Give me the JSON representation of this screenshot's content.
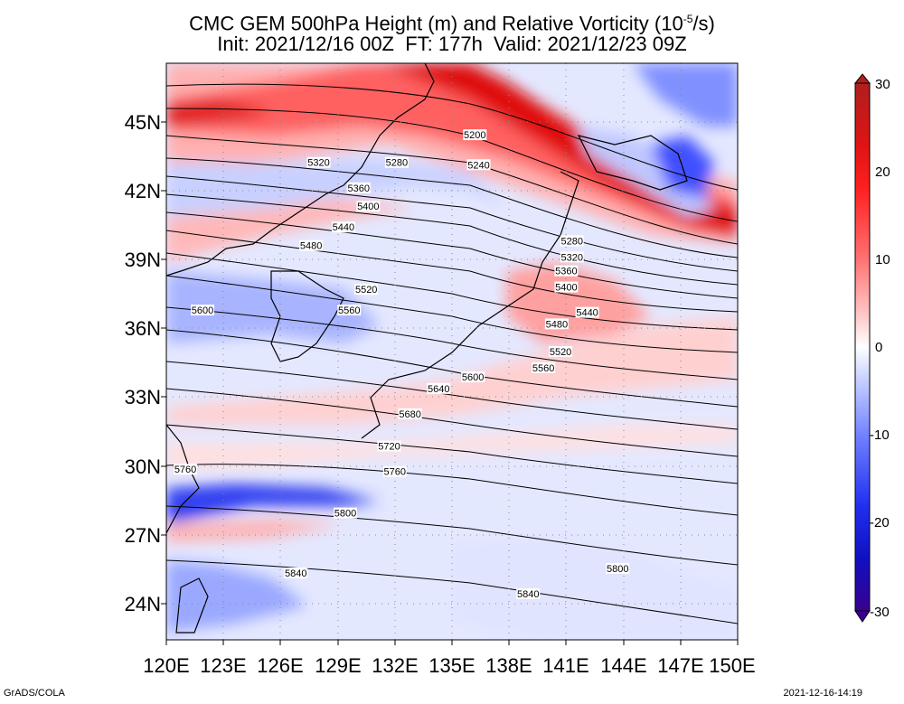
{
  "title_line1": "CMC GEM 500hPa Height (m) and Relative Vorticity (10",
  "title_line1_sup": "-5",
  "title_line1_end": "/s)",
  "title_line2": "Init: 2021/12/16 00Z  FT: 177h  Valid: 2021/12/23 09Z",
  "footer_left": "GrADS/COLA",
  "footer_right": "2021-12-16-14:19",
  "map": {
    "lon_range": [
      120,
      150
    ],
    "lat_range": [
      22.5,
      47.5
    ],
    "lat_ticks": [
      "45N",
      "42N",
      "39N",
      "36N",
      "33N",
      "30N",
      "27N",
      "24N"
    ],
    "lon_ticks": [
      "120E",
      "123E",
      "126E",
      "129E",
      "132E",
      "135E",
      "138E",
      "141E",
      "144E",
      "147E",
      "150E"
    ]
  },
  "colorbar": {
    "ticks": [
      "30",
      "20",
      "10",
      "0",
      "-10",
      "-20",
      "-30"
    ],
    "colors": [
      "#b01e1e",
      "#e01414",
      "#ff3030",
      "#ff8080",
      "#ffc8c8",
      "#ffffff",
      "#c8d2ff",
      "#8090ff",
      "#3040ff",
      "#1010d0",
      "#3000a0"
    ]
  },
  "contour_labels": [
    {
      "text": "5200",
      "lon": 136.2,
      "lat": 44.4
    },
    {
      "text": "5240",
      "lon": 136.4,
      "lat": 43.1
    },
    {
      "text": "5280",
      "lon": 132.1,
      "lat": 43.2
    },
    {
      "text": "5320",
      "lon": 128.0,
      "lat": 43.2
    },
    {
      "text": "5360",
      "lon": 130.1,
      "lat": 42.1
    },
    {
      "text": "5400",
      "lon": 130.6,
      "lat": 41.3
    },
    {
      "text": "5440",
      "lon": 129.3,
      "lat": 40.4
    },
    {
      "text": "5480",
      "lon": 127.6,
      "lat": 39.6
    },
    {
      "text": "5520",
      "lon": 130.5,
      "lat": 37.7
    },
    {
      "text": "5560",
      "lon": 129.6,
      "lat": 36.8
    },
    {
      "text": "5600",
      "lon": 121.9,
      "lat": 36.8
    },
    {
      "text": "5600",
      "lon": 136.1,
      "lat": 33.9
    },
    {
      "text": "5640",
      "lon": 134.3,
      "lat": 33.4
    },
    {
      "text": "5680",
      "lon": 132.8,
      "lat": 32.3
    },
    {
      "text": "5720",
      "lon": 131.7,
      "lat": 30.9
    },
    {
      "text": "5760",
      "lon": 121.0,
      "lat": 29.9
    },
    {
      "text": "5760",
      "lon": 132.0,
      "lat": 29.8
    },
    {
      "text": "5800",
      "lon": 129.4,
      "lat": 28.0
    },
    {
      "text": "5800",
      "lon": 143.7,
      "lat": 25.6
    },
    {
      "text": "5840",
      "lon": 126.8,
      "lat": 25.4
    },
    {
      "text": "5840",
      "lon": 139.0,
      "lat": 24.5
    },
    {
      "text": "5280",
      "lon": 141.3,
      "lat": 39.8
    },
    {
      "text": "5320",
      "lon": 141.3,
      "lat": 39.1
    },
    {
      "text": "5360",
      "lon": 141.0,
      "lat": 38.5
    },
    {
      "text": "5400",
      "lon": 141.0,
      "lat": 37.8
    },
    {
      "text": "5440",
      "lon": 142.1,
      "lat": 36.7
    },
    {
      "text": "5480",
      "lon": 140.5,
      "lat": 36.2
    },
    {
      "text": "5520",
      "lon": 140.7,
      "lat": 35.0
    },
    {
      "text": "5560",
      "lon": 139.8,
      "lat": 34.3
    }
  ]
}
